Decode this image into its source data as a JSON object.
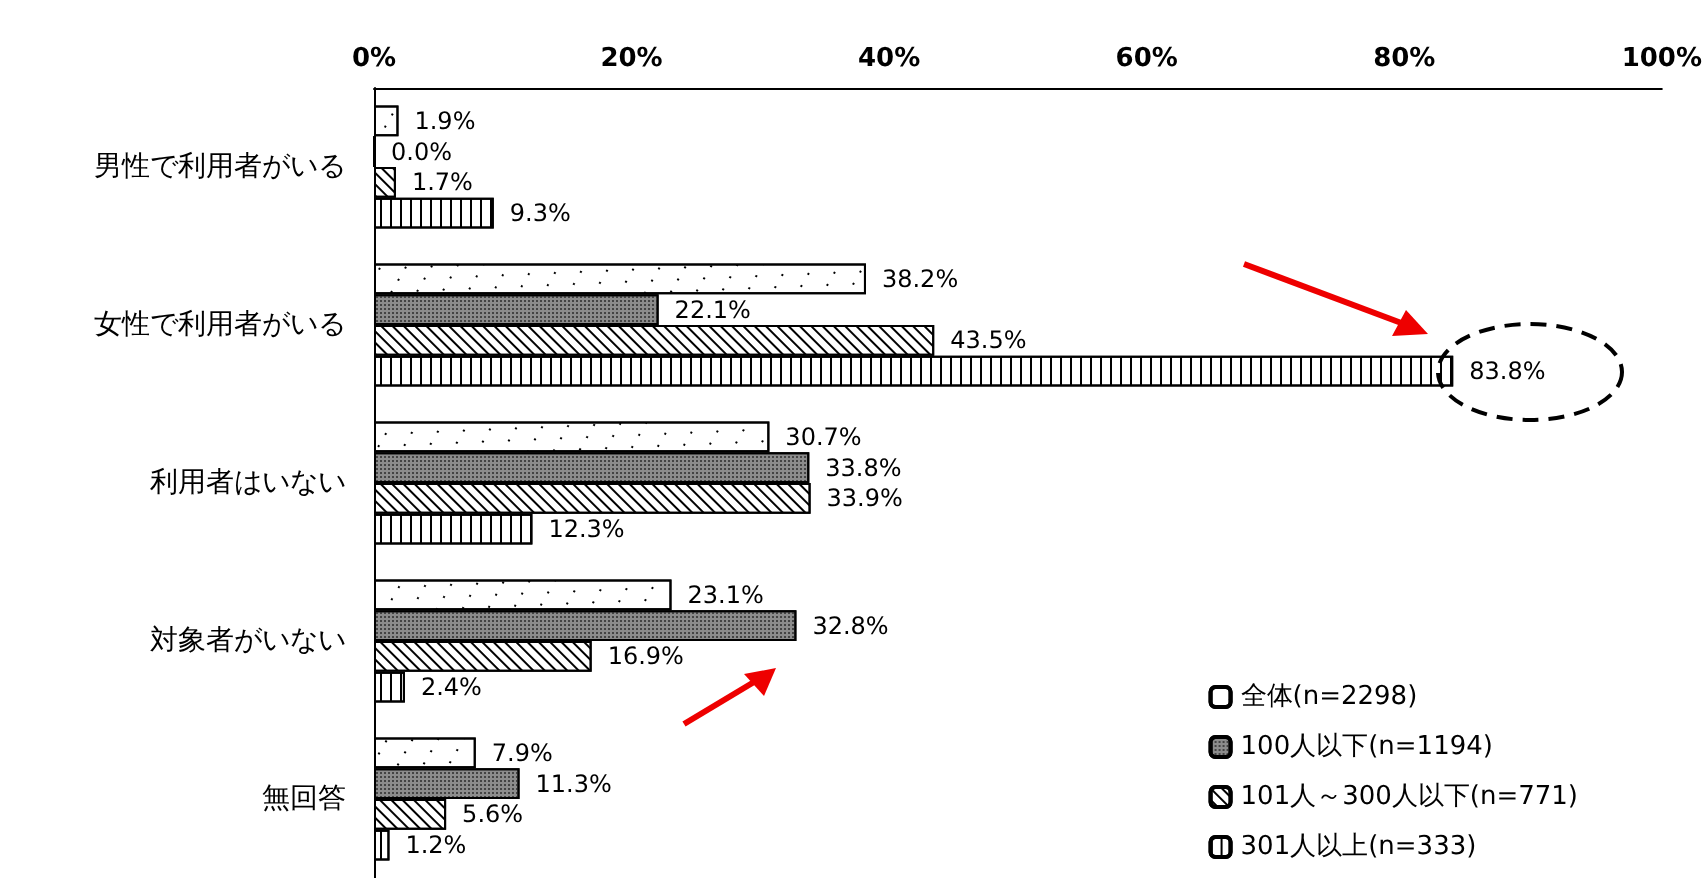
{
  "chart_data": {
    "type": "bar",
    "orientation": "horizontal",
    "categories": [
      "男性で利用者がいる",
      "女性で利用者がいる",
      "利用者はいない",
      "対象者がいない",
      "無回答"
    ],
    "series": [
      {
        "name": "全体(n=2298)",
        "color": "#ffffff",
        "values": [
          1.9,
          38.2,
          30.7,
          23.1,
          7.9
        ],
        "value_labels": [
          "1.9%",
          "38.2%",
          "30.7%",
          "23.1%",
          "7.9%"
        ]
      },
      {
        "name": "100人以下(n=1194)",
        "color": "#8c8c8c",
        "values": [
          0.0,
          22.1,
          33.8,
          32.8,
          11.3
        ],
        "value_labels": [
          "0.0%",
          "22.1%",
          "33.8%",
          "32.8%",
          "11.3%"
        ]
      },
      {
        "name": "101人～300人以下(n=771)",
        "color": "#ffffff",
        "values": [
          1.7,
          43.5,
          33.9,
          16.9,
          5.6
        ],
        "value_labels": [
          "1.7%",
          "43.5%",
          "33.9%",
          "16.9%",
          "5.6%"
        ]
      },
      {
        "name": "301人以上(n=333)",
        "color": "#ffffff",
        "values": [
          9.3,
          83.8,
          12.3,
          2.4,
          1.2
        ],
        "value_labels": [
          "9.3%",
          "83.8%",
          "12.3%",
          "2.4%",
          "1.2%"
        ]
      }
    ],
    "xlim": [
      0,
      100
    ],
    "xticks": [
      {
        "value": 0,
        "label": "0%"
      },
      {
        "value": 20,
        "label": "20%"
      },
      {
        "value": 40,
        "label": "40%"
      },
      {
        "value": 60,
        "label": "60%"
      },
      {
        "value": 80,
        "label": "80%"
      },
      {
        "value": 100,
        "label": "100%"
      }
    ],
    "grid": false,
    "legend": "bottom right"
  }
}
